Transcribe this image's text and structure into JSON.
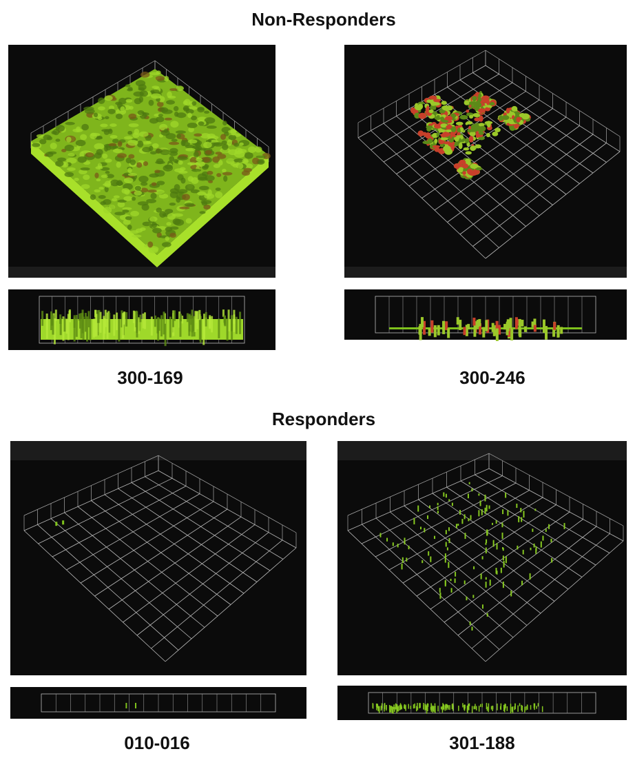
{
  "sections": [
    {
      "title": "Non-Responders",
      "panels": [
        {
          "label": "300-169"
        },
        {
          "label": "300-246"
        }
      ]
    },
    {
      "title": "Responders",
      "panels": [
        {
          "label": "010-016"
        },
        {
          "label": "301-188"
        }
      ]
    }
  ]
}
